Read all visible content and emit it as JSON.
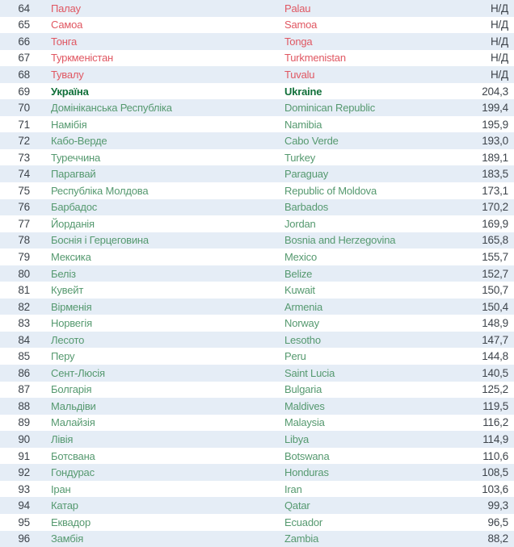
{
  "colors": {
    "stripe_bg": "#e5edf6",
    "row_bg": "#ffffff",
    "dark_text": "#3e444b",
    "country_text": "#55996f",
    "no_data_text": "#e05762",
    "highlight_text": "#11703a"
  },
  "chart_data": {
    "type": "table",
    "columns": [
      "rank",
      "country_uk",
      "country_en",
      "value"
    ],
    "no_data_label": "Н/Д",
    "value_decimal_separator": ",",
    "highlighted_row_rank": 69,
    "rows": [
      {
        "rank": "64",
        "country_uk": "Палау",
        "country_en": "Palau",
        "value": "Н/Д",
        "value_num": null,
        "status": "no-data"
      },
      {
        "rank": "65",
        "country_uk": "Самоа",
        "country_en": "Samoa",
        "value": "Н/Д",
        "value_num": null,
        "status": "no-data"
      },
      {
        "rank": "66",
        "country_uk": "Тонга",
        "country_en": "Tonga",
        "value": "Н/Д",
        "value_num": null,
        "status": "no-data"
      },
      {
        "rank": "67",
        "country_uk": "Туркменістан",
        "country_en": "Turkmenistan",
        "value": "Н/Д",
        "value_num": null,
        "status": "no-data"
      },
      {
        "rank": "68",
        "country_uk": "Тувалу",
        "country_en": "Tuvalu",
        "value": "Н/Д",
        "value_num": null,
        "status": "no-data"
      },
      {
        "rank": "69",
        "country_uk": "Україна",
        "country_en": "Ukraine",
        "value": "204,3",
        "value_num": 204.3,
        "status": "highlight"
      },
      {
        "rank": "70",
        "country_uk": "Домініканська Республіка",
        "country_en": "Dominican Republic",
        "value": "199,4",
        "value_num": 199.4,
        "status": "normal"
      },
      {
        "rank": "71",
        "country_uk": "Намібія",
        "country_en": "Namibia",
        "value": "195,9",
        "value_num": 195.9,
        "status": "normal"
      },
      {
        "rank": "72",
        "country_uk": "Кабо-Верде",
        "country_en": "Cabo Verde",
        "value": "193,0",
        "value_num": 193.0,
        "status": "normal"
      },
      {
        "rank": "73",
        "country_uk": "Туреччина",
        "country_en": "Turkey",
        "value": "189,1",
        "value_num": 189.1,
        "status": "normal"
      },
      {
        "rank": "74",
        "country_uk": "Парагвай",
        "country_en": "Paraguay",
        "value": "183,5",
        "value_num": 183.5,
        "status": "normal"
      },
      {
        "rank": "75",
        "country_uk": "Республіка Молдова",
        "country_en": "Republic of Moldova",
        "value": "173,1",
        "value_num": 173.1,
        "status": "normal"
      },
      {
        "rank": "76",
        "country_uk": "Барбадос",
        "country_en": "Barbados",
        "value": "170,2",
        "value_num": 170.2,
        "status": "normal"
      },
      {
        "rank": "77",
        "country_uk": "Йорданія",
        "country_en": "Jordan",
        "value": "169,9",
        "value_num": 169.9,
        "status": "normal"
      },
      {
        "rank": "78",
        "country_uk": "Боснія і Герцеговина",
        "country_en": "Bosnia and Herzegovina",
        "value": "165,8",
        "value_num": 165.8,
        "status": "normal"
      },
      {
        "rank": "79",
        "country_uk": "Мексика",
        "country_en": "Mexico",
        "value": "155,7",
        "value_num": 155.7,
        "status": "normal"
      },
      {
        "rank": "80",
        "country_uk": "Беліз",
        "country_en": "Belize",
        "value": "152,7",
        "value_num": 152.7,
        "status": "normal"
      },
      {
        "rank": "81",
        "country_uk": "Кувейт",
        "country_en": "Kuwait",
        "value": "150,7",
        "value_num": 150.7,
        "status": "normal"
      },
      {
        "rank": "82",
        "country_uk": "Вірменія",
        "country_en": "Armenia",
        "value": "150,4",
        "value_num": 150.4,
        "status": "normal"
      },
      {
        "rank": "83",
        "country_uk": "Норвегія",
        "country_en": "Norway",
        "value": "148,9",
        "value_num": 148.9,
        "status": "normal"
      },
      {
        "rank": "84",
        "country_uk": "Лесото",
        "country_en": "Lesotho",
        "value": "147,7",
        "value_num": 147.7,
        "status": "normal"
      },
      {
        "rank": "85",
        "country_uk": "Перу",
        "country_en": "Peru",
        "value": "144,8",
        "value_num": 144.8,
        "status": "normal"
      },
      {
        "rank": "86",
        "country_uk": "Сент-Люсія",
        "country_en": "Saint Lucia",
        "value": "140,5",
        "value_num": 140.5,
        "status": "normal"
      },
      {
        "rank": "87",
        "country_uk": "Болгарія",
        "country_en": "Bulgaria",
        "value": "125,2",
        "value_num": 125.2,
        "status": "normal"
      },
      {
        "rank": "88",
        "country_uk": "Мальдіви",
        "country_en": "Maldives",
        "value": "119,5",
        "value_num": 119.5,
        "status": "normal"
      },
      {
        "rank": "89",
        "country_uk": "Малайзія",
        "country_en": "Malaysia",
        "value": "116,2",
        "value_num": 116.2,
        "status": "normal"
      },
      {
        "rank": "90",
        "country_uk": "Лівія",
        "country_en": "Libya",
        "value": "114,9",
        "value_num": 114.9,
        "status": "normal"
      },
      {
        "rank": "91",
        "country_uk": "Ботсвана",
        "country_en": "Botswana",
        "value": "110,6",
        "value_num": 110.6,
        "status": "normal"
      },
      {
        "rank": "92",
        "country_uk": "Гондурас",
        "country_en": "Honduras",
        "value": "108,5",
        "value_num": 108.5,
        "status": "normal"
      },
      {
        "rank": "93",
        "country_uk": "Іран",
        "country_en": "Iran",
        "value": "103,6",
        "value_num": 103.6,
        "status": "normal"
      },
      {
        "rank": "94",
        "country_uk": "Катар",
        "country_en": "Qatar",
        "value": "99,3",
        "value_num": 99.3,
        "status": "normal"
      },
      {
        "rank": "95",
        "country_uk": "Еквадор",
        "country_en": "Ecuador",
        "value": "96,5",
        "value_num": 96.5,
        "status": "normal"
      },
      {
        "rank": "96",
        "country_uk": "Замбія",
        "country_en": "Zambia",
        "value": "88,2",
        "value_num": 88.2,
        "status": "normal"
      }
    ]
  }
}
